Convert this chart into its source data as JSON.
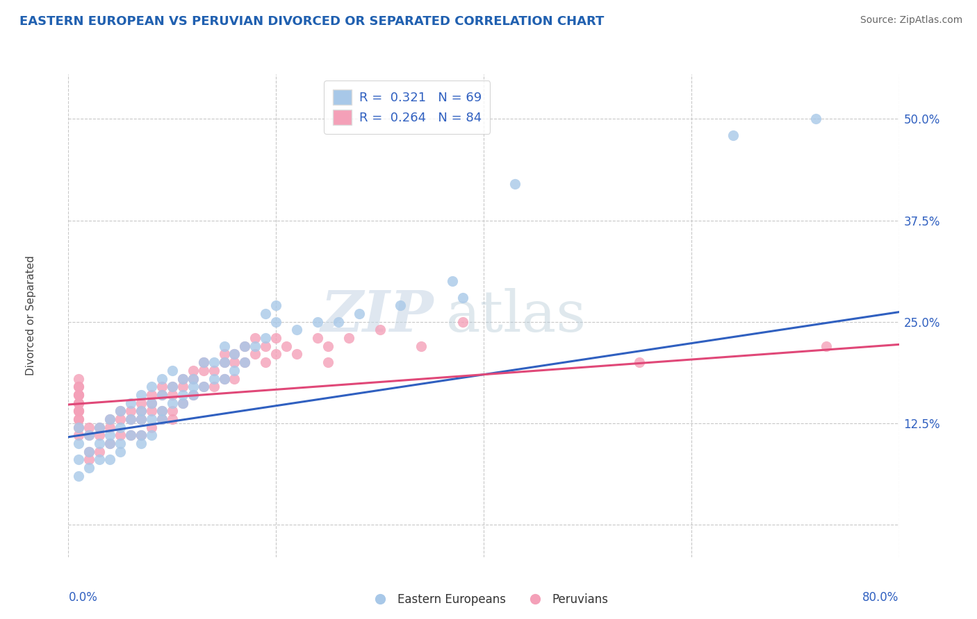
{
  "title": "EASTERN EUROPEAN VS PERUVIAN DIVORCED OR SEPARATED CORRELATION CHART",
  "source": "Source: ZipAtlas.com",
  "ylabel": "Divorced or Separated",
  "ytick_values": [
    0.0,
    0.125,
    0.25,
    0.375,
    0.5
  ],
  "ytick_labels": [
    "",
    "12.5%",
    "25.0%",
    "37.5%",
    "50.0%"
  ],
  "xlim": [
    0.0,
    0.8
  ],
  "ylim": [
    -0.04,
    0.555
  ],
  "blue_R": 0.321,
  "blue_N": 69,
  "pink_R": 0.264,
  "pink_N": 84,
  "blue_color": "#a8c8e8",
  "pink_color": "#f4a0b8",
  "line_blue": "#3060c0",
  "line_pink": "#e04878",
  "watermark_zip": "ZIP",
  "watermark_atlas": "atlas",
  "title_color": "#2060b0",
  "title_fontsize": 13,
  "tick_color": "#3060c0",
  "blue_line_x": [
    0.0,
    0.8
  ],
  "blue_line_y": [
    0.108,
    0.262
  ],
  "pink_line_x": [
    0.0,
    0.8
  ],
  "pink_line_y": [
    0.148,
    0.222
  ],
  "blue_scatter_x": [
    0.72,
    0.64,
    0.43,
    0.38,
    0.37,
    0.32,
    0.28,
    0.26,
    0.24,
    0.22,
    0.2,
    0.2,
    0.19,
    0.19,
    0.18,
    0.17,
    0.17,
    0.16,
    0.16,
    0.15,
    0.15,
    0.15,
    0.14,
    0.14,
    0.13,
    0.13,
    0.12,
    0.12,
    0.12,
    0.11,
    0.11,
    0.11,
    0.1,
    0.1,
    0.1,
    0.09,
    0.09,
    0.09,
    0.09,
    0.08,
    0.08,
    0.08,
    0.08,
    0.07,
    0.07,
    0.07,
    0.07,
    0.07,
    0.06,
    0.06,
    0.06,
    0.05,
    0.05,
    0.05,
    0.05,
    0.04,
    0.04,
    0.04,
    0.04,
    0.03,
    0.03,
    0.03,
    0.02,
    0.02,
    0.02,
    0.01,
    0.01,
    0.01,
    0.01
  ],
  "blue_scatter_y": [
    0.5,
    0.48,
    0.42,
    0.28,
    0.3,
    0.27,
    0.26,
    0.25,
    0.25,
    0.24,
    0.27,
    0.25,
    0.26,
    0.23,
    0.22,
    0.2,
    0.22,
    0.21,
    0.19,
    0.2,
    0.22,
    0.18,
    0.2,
    0.18,
    0.2,
    0.17,
    0.18,
    0.16,
    0.17,
    0.18,
    0.16,
    0.15,
    0.19,
    0.17,
    0.15,
    0.18,
    0.16,
    0.14,
    0.13,
    0.17,
    0.15,
    0.13,
    0.11,
    0.16,
    0.14,
    0.13,
    0.11,
    0.1,
    0.15,
    0.13,
    0.11,
    0.14,
    0.12,
    0.1,
    0.09,
    0.13,
    0.11,
    0.1,
    0.08,
    0.12,
    0.1,
    0.08,
    0.11,
    0.09,
    0.07,
    0.12,
    0.1,
    0.08,
    0.06
  ],
  "pink_scatter_x": [
    0.73,
    0.55,
    0.38,
    0.34,
    0.3,
    0.27,
    0.25,
    0.25,
    0.24,
    0.22,
    0.21,
    0.2,
    0.2,
    0.19,
    0.19,
    0.18,
    0.18,
    0.17,
    0.17,
    0.16,
    0.16,
    0.16,
    0.15,
    0.15,
    0.15,
    0.14,
    0.14,
    0.13,
    0.13,
    0.13,
    0.12,
    0.12,
    0.12,
    0.11,
    0.11,
    0.11,
    0.1,
    0.1,
    0.1,
    0.1,
    0.09,
    0.09,
    0.09,
    0.09,
    0.08,
    0.08,
    0.08,
    0.08,
    0.07,
    0.07,
    0.07,
    0.07,
    0.06,
    0.06,
    0.06,
    0.05,
    0.05,
    0.05,
    0.04,
    0.04,
    0.04,
    0.03,
    0.03,
    0.03,
    0.02,
    0.02,
    0.02,
    0.02,
    0.01,
    0.01,
    0.01,
    0.01,
    0.01,
    0.01,
    0.01,
    0.01,
    0.01,
    0.01,
    0.01,
    0.01,
    0.01,
    0.01,
    0.01,
    0.01
  ],
  "pink_scatter_y": [
    0.22,
    0.2,
    0.25,
    0.22,
    0.24,
    0.23,
    0.22,
    0.2,
    0.23,
    0.21,
    0.22,
    0.23,
    0.21,
    0.22,
    0.2,
    0.23,
    0.21,
    0.22,
    0.2,
    0.21,
    0.2,
    0.18,
    0.21,
    0.2,
    0.18,
    0.19,
    0.17,
    0.2,
    0.19,
    0.17,
    0.19,
    0.18,
    0.16,
    0.18,
    0.17,
    0.15,
    0.17,
    0.16,
    0.14,
    0.13,
    0.17,
    0.16,
    0.14,
    0.13,
    0.16,
    0.15,
    0.14,
    0.12,
    0.15,
    0.14,
    0.13,
    0.11,
    0.14,
    0.13,
    0.11,
    0.14,
    0.13,
    0.11,
    0.13,
    0.12,
    0.1,
    0.12,
    0.11,
    0.09,
    0.12,
    0.11,
    0.09,
    0.08,
    0.14,
    0.13,
    0.12,
    0.11,
    0.16,
    0.15,
    0.14,
    0.13,
    0.17,
    0.16,
    0.15,
    0.18,
    0.17,
    0.16,
    0.15,
    0.14
  ]
}
